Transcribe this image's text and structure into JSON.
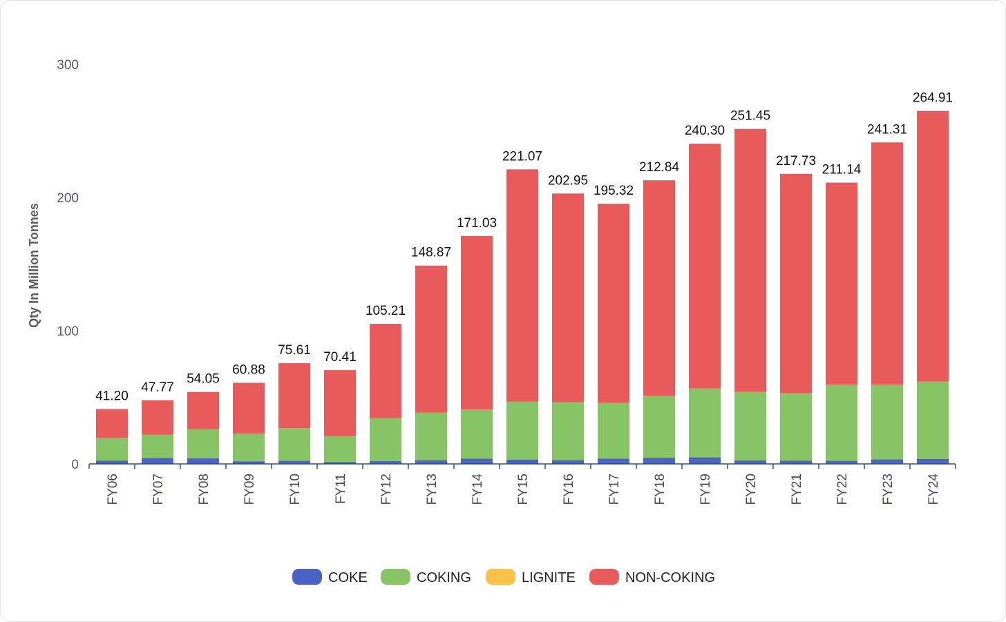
{
  "chart_data": {
    "type": "bar",
    "stacked": true,
    "ylabel": "Qty In Million Tonnes",
    "xlabel": "",
    "ylim": [
      0,
      300
    ],
    "yticks": [
      0,
      100,
      200,
      300
    ],
    "grid": false,
    "legend_position": "bottom",
    "categories": [
      "FY06",
      "FY07",
      "FY08",
      "FY09",
      "FY10",
      "FY11",
      "FY12",
      "FY13",
      "FY14",
      "FY15",
      "FY16",
      "FY17",
      "FY18",
      "FY19",
      "FY20",
      "FY21",
      "FY22",
      "FY23",
      "FY24"
    ],
    "totals": [
      "41.20",
      "47.77",
      "54.05",
      "60.88",
      "75.61",
      "70.41",
      "105.21",
      "148.87",
      "171.03",
      "221.07",
      "202.95",
      "195.32",
      "212.84",
      "240.30",
      "251.45",
      "217.73",
      "211.14",
      "241.31",
      "264.91"
    ],
    "series": [
      {
        "name": "COKE",
        "color": "#4a63c4",
        "values": [
          2.5,
          4.5,
          4.2,
          2.0,
          2.4,
          1.5,
          2.2,
          2.8,
          3.9,
          3.3,
          2.8,
          4.0,
          4.6,
          4.9,
          2.7,
          2.5,
          2.4,
          3.4,
          3.8
        ]
      },
      {
        "name": "COKING",
        "color": "#86c466",
        "values": [
          17.0,
          17.5,
          21.8,
          20.7,
          24.4,
          19.5,
          32.1,
          35.8,
          36.9,
          43.4,
          43.6,
          41.8,
          46.5,
          51.8,
          51.3,
          50.7,
          57.2,
          56.2,
          58.1
        ]
      },
      {
        "name": "LIGNITE",
        "color": "#f9c04a",
        "values": [
          0,
          0,
          0,
          0,
          0,
          0,
          0,
          0,
          0,
          0,
          0,
          0,
          0,
          0,
          0,
          0,
          0,
          0,
          0
        ]
      },
      {
        "name": "NON-COKING",
        "color": "#e95a5b",
        "values": [
          21.7,
          25.77,
          28.05,
          38.18,
          48.81,
          49.41,
          70.91,
          110.27,
          130.23,
          174.37,
          156.55,
          149.52,
          161.74,
          183.6,
          197.45,
          164.53,
          151.54,
          181.71,
          203.01
        ]
      }
    ]
  }
}
